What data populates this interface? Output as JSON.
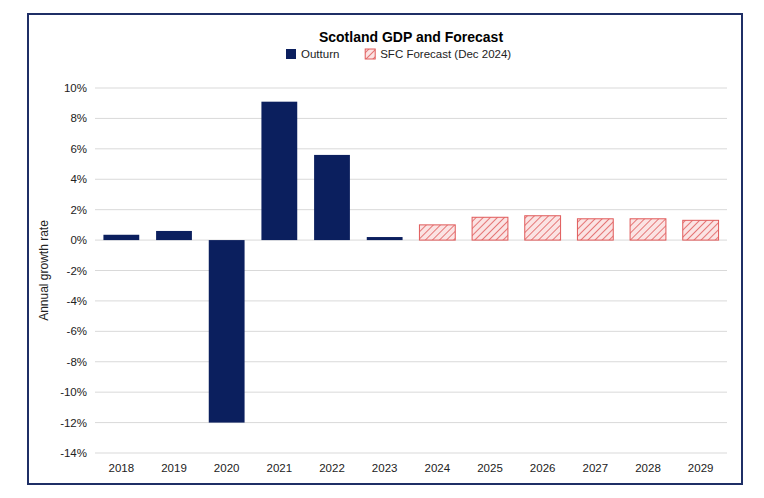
{
  "chart_data": {
    "type": "bar",
    "title": "Scotland GDP and Forecast",
    "y_label": "Annual growth rate",
    "categories": [
      "2018",
      "2019",
      "2020",
      "2021",
      "2022",
      "2023",
      "2024",
      "2025",
      "2026",
      "2027",
      "2028",
      "2029"
    ],
    "series": [
      {
        "name": "Outturn",
        "color": "#0b1f5e",
        "values": [
          0.35,
          0.6,
          -12.0,
          9.1,
          5.6,
          0.2,
          null,
          null,
          null,
          null,
          null,
          null
        ]
      },
      {
        "name": "SFC Forecast (Dec 2024)",
        "color": "#e05a5a",
        "values": [
          null,
          null,
          null,
          null,
          null,
          null,
          1.0,
          1.5,
          1.6,
          1.4,
          1.4,
          1.3
        ]
      }
    ],
    "ylim": [
      -14,
      10
    ],
    "yticks": [
      {
        "value": -14,
        "label": "-14%"
      },
      {
        "value": -12,
        "label": "-12%"
      },
      {
        "value": -10,
        "label": "-10%"
      },
      {
        "value": -8,
        "label": "-8%"
      },
      {
        "value": -6,
        "label": "-6%"
      },
      {
        "value": -4,
        "label": "-4%"
      },
      {
        "value": -2,
        "label": "-2%"
      },
      {
        "value": 0,
        "label": "0%"
      },
      {
        "value": 2,
        "label": "2%"
      },
      {
        "value": 4,
        "label": "4%"
      },
      {
        "value": 6,
        "label": "6%"
      },
      {
        "value": 8,
        "label": "8%"
      },
      {
        "value": 10,
        "label": "10%"
      }
    ],
    "grid": true,
    "legend": "top"
  }
}
